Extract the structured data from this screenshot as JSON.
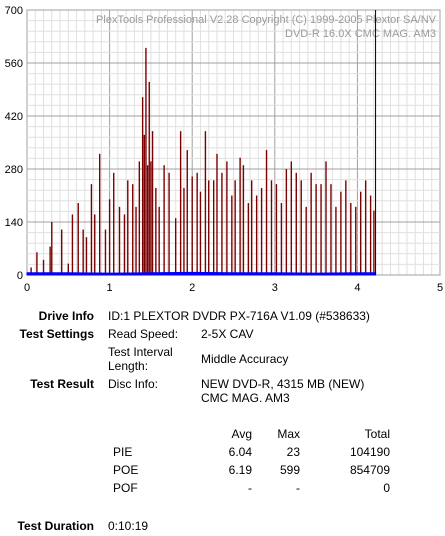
{
  "chart_data": {
    "type": "bar",
    "watermark": [
      "PlexTools Professional V2.28 Copyright (C) 1999-2005 Plextor SA/NV",
      "DVD-R    16.0X    CMC MAG. AM3"
    ],
    "x_ticks": [
      "0",
      "1",
      "2",
      "3",
      "4",
      "5"
    ],
    "y_ticks": [
      "0",
      "140",
      "280",
      "420",
      "560",
      "700"
    ],
    "xlim": [
      0,
      5
    ],
    "ylim": [
      0,
      700
    ],
    "grid": true,
    "series": [
      {
        "color": "#7b0000",
        "x": [
          0.05,
          0.12,
          0.2,
          0.28,
          0.3,
          0.42,
          0.5,
          0.55,
          0.62,
          0.68,
          0.72,
          0.78,
          0.82,
          0.88,
          0.95,
          1.0,
          1.05,
          1.12,
          1.18,
          1.22,
          1.28,
          1.32,
          1.36,
          1.4,
          1.42,
          1.44,
          1.46,
          1.48,
          1.5,
          1.52,
          1.56,
          1.6,
          1.66,
          1.72,
          1.8,
          1.86,
          1.9,
          1.94,
          2.0,
          2.06,
          2.1,
          2.16,
          2.2,
          2.26,
          2.3,
          2.36,
          2.42,
          2.48,
          2.52,
          2.58,
          2.62,
          2.68,
          2.72,
          2.78,
          2.84,
          2.9,
          2.96,
          3.02,
          3.08,
          3.14,
          3.2,
          3.26,
          3.32,
          3.38,
          3.44,
          3.5,
          3.56,
          3.62,
          3.68,
          3.74,
          3.8,
          3.86,
          3.92,
          3.98,
          4.04,
          4.1,
          4.16,
          4.2
        ],
        "values": [
          20,
          60,
          40,
          75,
          140,
          120,
          30,
          160,
          190,
          120,
          100,
          240,
          160,
          320,
          120,
          200,
          270,
          180,
          160,
          250,
          240,
          180,
          300,
          470,
          370,
          600,
          290,
          510,
          300,
          380,
          230,
          180,
          290,
          270,
          150,
          380,
          230,
          330,
          260,
          270,
          220,
          380,
          250,
          250,
          320,
          270,
          300,
          210,
          250,
          310,
          290,
          190,
          250,
          210,
          230,
          330,
          250,
          240,
          190,
          280,
          300,
          270,
          250,
          180,
          270,
          240,
          240,
          300,
          240,
          180,
          220,
          250,
          190,
          180,
          220,
          250,
          210,
          170
        ]
      },
      {
        "color": "#0000ff",
        "x": [
          0.0,
          0.5,
          1.0,
          1.5,
          2.0,
          2.5,
          3.0,
          3.5,
          4.0,
          4.22
        ],
        "values": [
          6,
          6,
          5,
          6,
          7,
          6,
          6,
          5,
          6,
          6
        ]
      }
    ],
    "marker_x": 4.22
  },
  "drive_info": {
    "label": "Drive Info",
    "value": "ID:1 PLEXTOR DVDR PX-716A V1.09 (#538633)"
  },
  "test_settings": {
    "label": "Test Settings",
    "read_speed_label": "Read Speed:",
    "read_speed_value": "2-5X CAV",
    "interval_label_1": "Test Interval",
    "interval_label_2": "Length:",
    "interval_value": "Middle Accuracy"
  },
  "test_result": {
    "label": "Test Result",
    "disc_info_label": "Disc Info:",
    "disc_info_1": "NEW DVD-R, 4315 MB (NEW)",
    "disc_info_2": "CMC MAG. AM3"
  },
  "stats": {
    "headers": {
      "avg": "Avg",
      "max": "Max",
      "total": "Total"
    },
    "rows": [
      {
        "name": "PIE",
        "avg": "6.04",
        "max": "23",
        "total": "104190"
      },
      {
        "name": "POE",
        "avg": "6.19",
        "max": "599",
        "total": "854709"
      },
      {
        "name": "POF",
        "avg": "-",
        "max": "-",
        "total": "0"
      }
    ]
  },
  "duration": {
    "label": "Test Duration",
    "value": "0:10:19"
  }
}
